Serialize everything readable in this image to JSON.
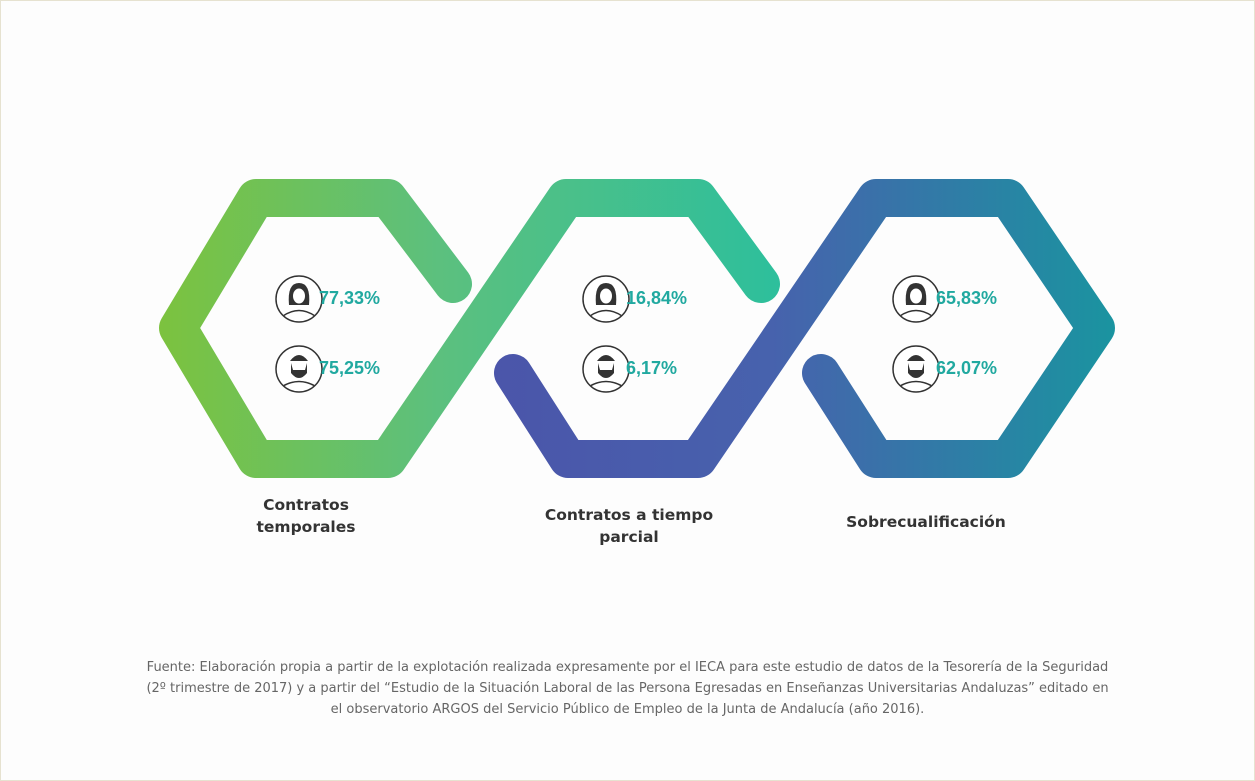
{
  "items": [
    {
      "label": "Contratos temporales",
      "women": "77,33%",
      "men": "75,25%"
    },
    {
      "label": "Contratos a tiempo parcial",
      "women": "16,84%",
      "men": "6,17%"
    },
    {
      "label": "Sobrecualificación",
      "women": "65,83%",
      "men": "62,07%"
    }
  ],
  "source_lines": [
    "Fuente: Elaboración propia a partir de la explotación realizada expresamente por el IECA para este estudio de datos de la Tesorería de la Seguridad",
    "(2º trimestre de 2017) y a partir del “Estudio de la Situación Laboral de las Persona Egresadas en Enseñanzas Universitarias Andaluzas” editado en",
    "el observatorio ARGOS del Servicio Público de Empleo de la Junta de Andalucía (año 2016)."
  ]
}
